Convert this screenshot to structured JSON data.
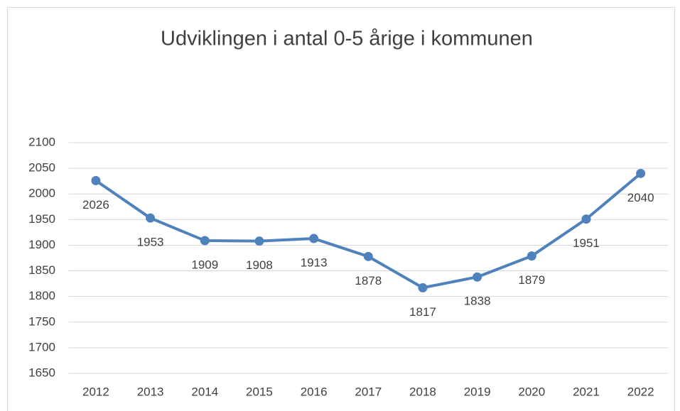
{
  "chart_data": {
    "type": "line",
    "title": "Udviklingen i antal 0-5 årige i kommunen",
    "categories": [
      "2012",
      "2013",
      "2014",
      "2015",
      "2016",
      "2017",
      "2018",
      "2019",
      "2020",
      "2021",
      "2022"
    ],
    "values": [
      2026,
      1953,
      1909,
      1908,
      1913,
      1878,
      1817,
      1838,
      1879,
      1951,
      2040
    ],
    "color": "#4f81bd",
    "ylim": [
      1650,
      2100
    ],
    "yticks": [
      1650,
      1700,
      1750,
      1800,
      1850,
      1900,
      1950,
      2000,
      2050,
      2100
    ],
    "grid": true
  }
}
